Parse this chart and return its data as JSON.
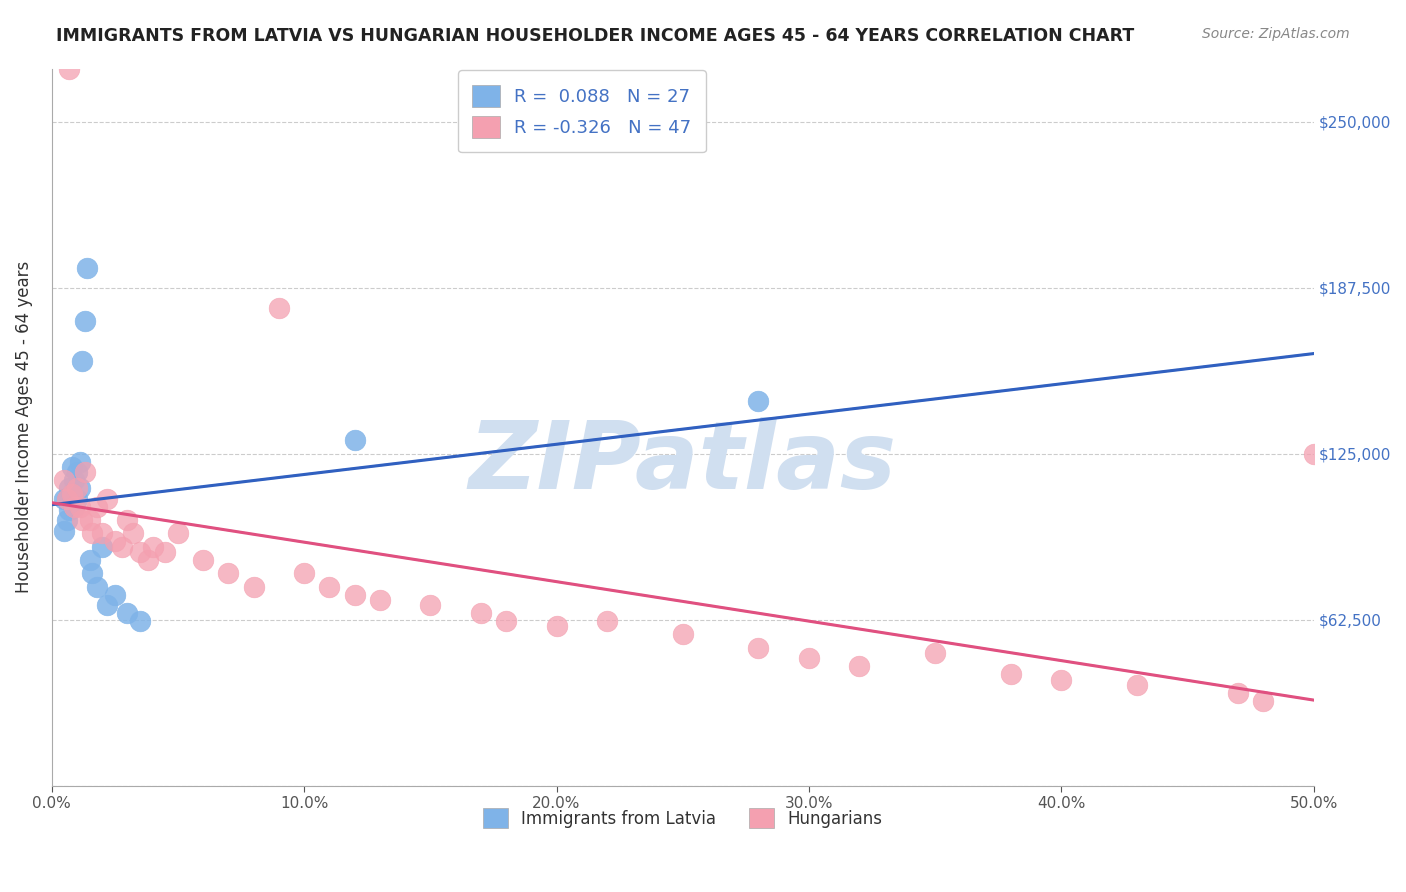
{
  "title": "IMMIGRANTS FROM LATVIA VS HUNGARIAN HOUSEHOLDER INCOME AGES 45 - 64 YEARS CORRELATION CHART",
  "source": "Source: ZipAtlas.com",
  "xlabel": "",
  "ylabel": "Householder Income Ages 45 - 64 years",
  "xlim": [
    0.0,
    0.5
  ],
  "ylim": [
    0,
    270000
  ],
  "yticks": [
    0,
    62500,
    125000,
    187500,
    250000
  ],
  "ytick_labels": [
    "",
    "$62,500",
    "$125,000",
    "$187,500",
    "$250,000"
  ],
  "xticks": [
    0.0,
    0.1,
    0.2,
    0.3,
    0.4,
    0.5
  ],
  "xtick_labels": [
    "0.0%",
    "10.0%",
    "20.0%",
    "30.0%",
    "40.0%",
    "50.0%"
  ],
  "blue_R": 0.088,
  "blue_N": 27,
  "pink_R": -0.326,
  "pink_N": 47,
  "blue_color": "#7fb3e8",
  "pink_color": "#f4a0b0",
  "blue_line_color": "#3060c0",
  "pink_line_color": "#e05080",
  "watermark": "ZIPatlas",
  "watermark_color": "#d0dff0",
  "legend_R_color": "#4472c4",
  "blue_x": [
    0.005,
    0.005,
    0.006,
    0.006,
    0.007,
    0.007,
    0.008,
    0.008,
    0.009,
    0.009,
    0.01,
    0.01,
    0.011,
    0.011,
    0.012,
    0.013,
    0.014,
    0.015,
    0.016,
    0.018,
    0.02,
    0.022,
    0.025,
    0.03,
    0.035,
    0.12,
    0.28
  ],
  "blue_y": [
    108000,
    96000,
    108000,
    100000,
    112000,
    104000,
    120000,
    110000,
    115000,
    105000,
    118000,
    108000,
    122000,
    112000,
    160000,
    175000,
    195000,
    85000,
    80000,
    75000,
    90000,
    68000,
    72000,
    65000,
    62000,
    130000,
    145000
  ],
  "pink_x": [
    0.005,
    0.006,
    0.007,
    0.008,
    0.009,
    0.01,
    0.011,
    0.012,
    0.013,
    0.015,
    0.016,
    0.018,
    0.02,
    0.022,
    0.025,
    0.028,
    0.03,
    0.032,
    0.035,
    0.038,
    0.04,
    0.045,
    0.05,
    0.06,
    0.07,
    0.08,
    0.09,
    0.1,
    0.11,
    0.12,
    0.13,
    0.15,
    0.17,
    0.18,
    0.2,
    0.22,
    0.25,
    0.28,
    0.3,
    0.32,
    0.35,
    0.38,
    0.4,
    0.43,
    0.47,
    0.48,
    0.5
  ],
  "pink_y": [
    115000,
    108000,
    270000,
    110000,
    105000,
    112000,
    105000,
    100000,
    118000,
    100000,
    95000,
    105000,
    95000,
    108000,
    92000,
    90000,
    100000,
    95000,
    88000,
    85000,
    90000,
    88000,
    95000,
    85000,
    80000,
    75000,
    180000,
    80000,
    75000,
    72000,
    70000,
    68000,
    65000,
    62000,
    60000,
    62000,
    57000,
    52000,
    48000,
    45000,
    50000,
    42000,
    40000,
    38000,
    35000,
    32000,
    125000
  ]
}
